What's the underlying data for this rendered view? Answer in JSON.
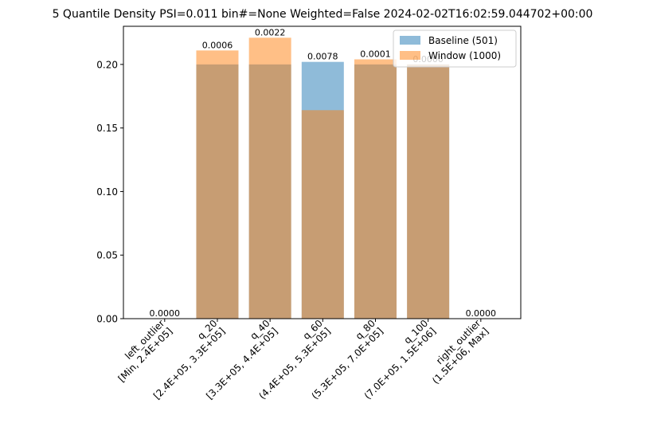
{
  "chart_data": {
    "type": "bar",
    "title": "5 Quantile Density PSI=0.011 bin#=None Weighted=False 2024-02-02T16:02:59.044702+00:00",
    "xlabel": "",
    "ylabel": "",
    "ylim": [
      0,
      0.23
    ],
    "yticks": [
      "0.00",
      "0.05",
      "0.10",
      "0.15",
      "0.20"
    ],
    "categories": [
      [
        "left_outlier",
        "[Min, 2.4E+05]"
      ],
      [
        "q_20",
        "[2.4E+05, 3.3E+05]"
      ],
      [
        "q_40",
        "[3.3E+05, 4.4E+05]"
      ],
      [
        "q_60",
        "(4.4E+05, 5.3E+05]"
      ],
      [
        "q_80",
        "(5.3E+05, 7.0E+05]"
      ],
      [
        "q_100",
        "(7.0E+05, 1.5E+06]"
      ],
      [
        "right_outlier",
        "(1.5E+06, Max]"
      ]
    ],
    "series": [
      {
        "name": "Baseline (501)",
        "color": "#1f77b4",
        "alpha": 0.5,
        "values": [
          0,
          0.2,
          0.2,
          0.202,
          0.2,
          0.2,
          0
        ]
      },
      {
        "name": "Window (1000)",
        "color": "#ff7f0e",
        "alpha": 0.5,
        "values": [
          0,
          0.211,
          0.221,
          0.164,
          0.204,
          0.2,
          0
        ]
      }
    ],
    "data_labels": [
      "0.0000",
      "0.0006",
      "0.0022",
      "0.0078",
      "0.0001",
      "0.0000",
      "0.0000"
    ],
    "legend": "top-right",
    "grid": false
  }
}
